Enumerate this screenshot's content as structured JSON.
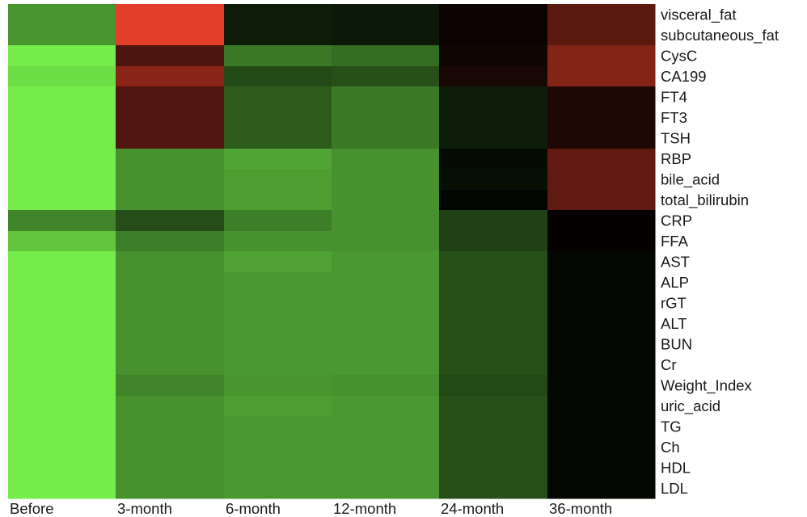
{
  "chart_data": {
    "type": "heatmap",
    "title": "",
    "xlabel": "",
    "ylabel": "",
    "legend": "none",
    "color_scale": {
      "low": "#76f24c",
      "mid": "#000000",
      "high": "#ef412a"
    },
    "columns": [
      "Before",
      "3-month",
      "6-month",
      "12-month",
      "24-month",
      "36-month"
    ],
    "rows": [
      "visceral_fat",
      "subcutaneous_fat",
      "CysC",
      "CA199",
      "FT4",
      "FT3",
      "TSH",
      "RBP",
      "bile_acid",
      "total_bilirubin",
      "CRP",
      "FFA",
      "AST",
      "ALP",
      "rGT",
      "ALT",
      "BUN",
      "Cr",
      "Weight_Index",
      "uric_acid",
      "TG",
      "Ch",
      "HDL",
      "LDL"
    ],
    "values": [
      [
        -0.62,
        0.95,
        -0.12,
        -0.1,
        0.05,
        0.38
      ],
      [
        -0.62,
        0.95,
        -0.12,
        -0.1,
        0.05,
        0.38
      ],
      [
        -0.98,
        0.32,
        -0.5,
        -0.45,
        0.07,
        0.55
      ],
      [
        -0.92,
        0.57,
        -0.3,
        -0.33,
        0.1,
        0.55
      ],
      [
        -0.98,
        0.33,
        -0.38,
        -0.5,
        -0.12,
        0.12
      ],
      [
        -0.98,
        0.33,
        -0.38,
        -0.5,
        -0.12,
        0.12
      ],
      [
        -0.98,
        0.33,
        -0.38,
        -0.5,
        -0.12,
        0.12
      ],
      [
        -0.98,
        -0.6,
        -0.68,
        -0.6,
        -0.04,
        0.4
      ],
      [
        -0.98,
        -0.6,
        -0.65,
        -0.6,
        -0.06,
        0.4
      ],
      [
        -0.98,
        -0.6,
        -0.65,
        -0.6,
        -0.02,
        0.4
      ],
      [
        -0.55,
        -0.32,
        -0.52,
        -0.6,
        -0.27,
        0.02
      ],
      [
        -0.82,
        -0.52,
        -0.6,
        -0.6,
        -0.27,
        0.02
      ],
      [
        -0.98,
        -0.6,
        -0.67,
        -0.63,
        -0.33,
        -0.03
      ],
      [
        -0.98,
        -0.6,
        -0.63,
        -0.63,
        -0.33,
        -0.03
      ],
      [
        -0.98,
        -0.6,
        -0.63,
        -0.63,
        -0.33,
        -0.03
      ],
      [
        -0.98,
        -0.6,
        -0.63,
        -0.63,
        -0.33,
        -0.03
      ],
      [
        -0.98,
        -0.6,
        -0.63,
        -0.63,
        -0.33,
        -0.03
      ],
      [
        -0.98,
        -0.6,
        -0.63,
        -0.63,
        -0.33,
        -0.03
      ],
      [
        -0.98,
        -0.55,
        -0.62,
        -0.6,
        -0.3,
        -0.03
      ],
      [
        -0.98,
        -0.6,
        -0.65,
        -0.63,
        -0.33,
        -0.03
      ],
      [
        -0.98,
        -0.6,
        -0.63,
        -0.63,
        -0.33,
        -0.03
      ],
      [
        -0.98,
        -0.6,
        -0.63,
        -0.63,
        -0.33,
        -0.03
      ],
      [
        -0.98,
        -0.6,
        -0.63,
        -0.63,
        -0.33,
        -0.03
      ],
      [
        -0.98,
        -0.6,
        -0.63,
        -0.63,
        -0.33,
        -0.03
      ]
    ]
  }
}
